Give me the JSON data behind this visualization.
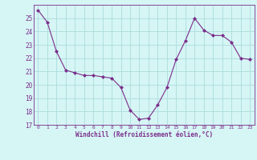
{
  "x": [
    0,
    1,
    2,
    3,
    4,
    5,
    6,
    7,
    8,
    9,
    10,
    11,
    12,
    13,
    14,
    15,
    16,
    17,
    18,
    19,
    20,
    21,
    22,
    23
  ],
  "y": [
    25.6,
    24.7,
    22.5,
    21.1,
    20.9,
    20.7,
    20.7,
    20.6,
    20.5,
    19.8,
    18.1,
    17.4,
    17.5,
    18.5,
    19.8,
    21.9,
    23.3,
    25.0,
    24.1,
    23.7,
    23.7,
    23.2,
    22.0,
    21.9
  ],
  "line_color": "#7b2d8b",
  "marker": "D",
  "marker_size": 2,
  "bg_color": "#d6f5f5",
  "grid_color": "#aadddd",
  "ylabel_values": [
    17,
    18,
    19,
    20,
    21,
    22,
    23,
    24,
    25
  ],
  "ylim": [
    17,
    26
  ],
  "xlim": [
    -0.5,
    23.5
  ],
  "xlabel": "Windchill (Refroidissement éolien,°C)",
  "xlabel_color": "#7b2d8b",
  "tick_color": "#7b2d8b"
}
